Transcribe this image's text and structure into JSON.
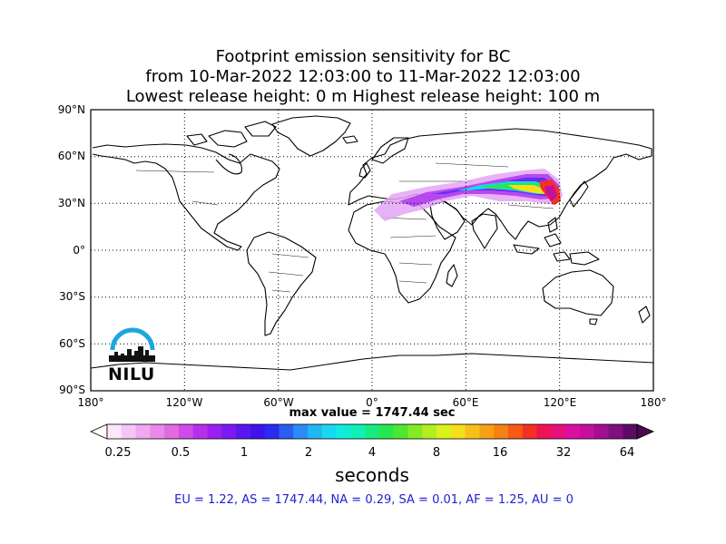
{
  "title": {
    "line1": "Footprint emission sensitivity for BC",
    "line2": "from 10-Mar-2022 12:03:00 to 11-Mar-2022 12:03:00",
    "line3": "Lowest release height: 0 m       Highest release height: 100 m"
  },
  "map": {
    "lat_labels": [
      "90°N",
      "60°N",
      "30°N",
      "0°",
      "30°S",
      "60°S",
      "90°S"
    ],
    "lon_labels": [
      "180°",
      "120°W",
      "60°W",
      "0°",
      "60°E",
      "120°E",
      "180°"
    ],
    "grid": "dotted",
    "max_value_text": "max value = 1747.44 sec"
  },
  "colorbar": {
    "tick_labels": [
      "0.25",
      "0.5",
      "1",
      "2",
      "4",
      "8",
      "16",
      "32",
      "64"
    ],
    "unit": "seconds",
    "colors": [
      "#fbe6fb",
      "#f5c6f5",
      "#f0a8f0",
      "#e98ae9",
      "#df6bdf",
      "#cf4ae6",
      "#b830ee",
      "#9b20f0",
      "#7a1af2",
      "#5a16f0",
      "#3c14ee",
      "#2a2af0",
      "#2a5cf2",
      "#2a8cf4",
      "#22b6f4",
      "#18d8f0",
      "#10ecdc",
      "#10f0b4",
      "#18ec80",
      "#28e650",
      "#4ee630",
      "#84ea26",
      "#b4ee20",
      "#dcf01c",
      "#f4e018",
      "#f6c016",
      "#f6a016",
      "#f68014",
      "#f65a14",
      "#f43024",
      "#ee1454",
      "#e6107c",
      "#dc10a0",
      "#c4109c",
      "#a01090",
      "#80107e",
      "#5c0c64"
    ]
  },
  "region_summary": "EU = 1.22,  AS = 1747.44,  NA = 0.29,  SA = 0.01,  AF = 1.25,  AU = 0",
  "logo": {
    "text": "NILU",
    "color": "#1aa7e0"
  }
}
